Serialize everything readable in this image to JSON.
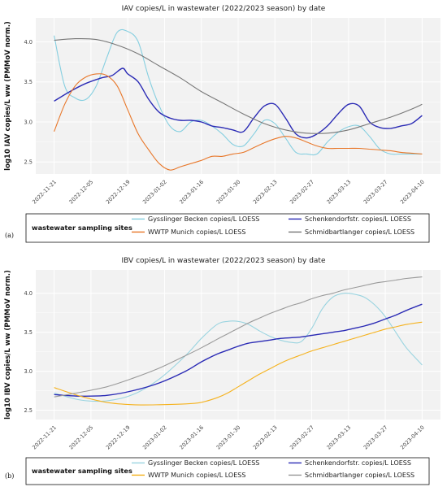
{
  "chart_data": [
    {
      "type": "line",
      "panel_label": "(a)",
      "title": "IAV copies/L in wastewater (2022/2023 season) by date",
      "xlabel": "",
      "ylabel": "log10 IAV copies/L ww (PMMoV norm.)",
      "ylim": [
        2.35,
        4.3
      ],
      "yticks": [
        2.5,
        3.0,
        3.5,
        4.0
      ],
      "ytick_labels": [
        "2.5",
        "3.0",
        "3.5",
        "4.0"
      ],
      "xlim": [
        -7,
        147
      ],
      "x_tick_labels": [
        "2022-11-21",
        "2022-12-05",
        "2022-12-19",
        "2023-01-02",
        "2023-01-16",
        "2023-01-30",
        "2023-02-13",
        "2023-02-27",
        "2023-03-13",
        "2023-03-27",
        "2023-04-10"
      ],
      "grid": true,
      "legend": {
        "title": "wastewater sampling sites",
        "placement": "bottom",
        "entries": [
          {
            "name": "Gysslinger Becken copies/L LOESS",
            "color": "#86cfe0"
          },
          {
            "name": "Schenkendorfstr. copies/L LOESS",
            "color": "#2b2bb5"
          },
          {
            "name": "WWTP Munich copies/L LOESS",
            "color": "#e8772a"
          },
          {
            "name": "Schmidbartlanger copies/L LOESS",
            "color": "#777777"
          }
        ]
      },
      "series": [
        {
          "name": "Gysslinger Becken copies/L LOESS",
          "color": "#86cfe0",
          "x": [
            0,
            4,
            8,
            12,
            16,
            20,
            24,
            28,
            32,
            36,
            40,
            44,
            48,
            52,
            56,
            60,
            64,
            68,
            72,
            76,
            80,
            84,
            88,
            92,
            96,
            100,
            104,
            108,
            112,
            116,
            120,
            124,
            128,
            132,
            136,
            140
          ],
          "y": [
            4.08,
            3.45,
            3.3,
            3.28,
            3.45,
            3.8,
            4.12,
            4.13,
            4.0,
            3.55,
            3.2,
            2.95,
            2.88,
            3.0,
            3.02,
            2.95,
            2.85,
            2.72,
            2.7,
            2.85,
            3.02,
            2.98,
            2.8,
            2.62,
            2.6,
            2.6,
            2.75,
            2.87,
            2.94,
            2.95,
            2.82,
            2.66,
            2.6,
            2.6,
            2.6,
            2.6
          ]
        },
        {
          "name": "Schenkendorfstr. copies/L LOESS",
          "color": "#2b2bb5",
          "x": [
            0,
            6,
            12,
            18,
            22,
            26,
            28,
            32,
            36,
            40,
            44,
            48,
            52,
            56,
            60,
            64,
            68,
            72,
            76,
            80,
            84,
            88,
            92,
            96,
            100,
            104,
            108,
            112,
            116,
            120,
            124,
            128,
            132,
            136,
            140
          ],
          "y": [
            3.26,
            3.38,
            3.48,
            3.55,
            3.58,
            3.67,
            3.6,
            3.5,
            3.28,
            3.12,
            3.05,
            3.02,
            3.02,
            3.0,
            2.95,
            2.93,
            2.9,
            2.88,
            3.05,
            3.2,
            3.22,
            3.05,
            2.85,
            2.8,
            2.85,
            2.95,
            3.1,
            3.22,
            3.2,
            3.0,
            2.93,
            2.92,
            2.95,
            2.98,
            3.08
          ]
        },
        {
          "name": "WWTP Munich copies/L LOESS",
          "color": "#e8772a",
          "x": [
            0,
            4,
            8,
            12,
            16,
            20,
            24,
            28,
            32,
            36,
            40,
            44,
            48,
            52,
            56,
            60,
            64,
            68,
            72,
            76,
            80,
            84,
            88,
            92,
            96,
            100,
            104,
            108,
            112,
            116,
            120,
            124,
            128,
            132,
            136,
            140
          ],
          "y": [
            2.88,
            3.22,
            3.45,
            3.56,
            3.6,
            3.58,
            3.45,
            3.15,
            2.85,
            2.65,
            2.48,
            2.4,
            2.44,
            2.48,
            2.52,
            2.57,
            2.57,
            2.6,
            2.62,
            2.68,
            2.74,
            2.79,
            2.82,
            2.8,
            2.75,
            2.7,
            2.67,
            2.67,
            2.67,
            2.67,
            2.66,
            2.65,
            2.64,
            2.62,
            2.61,
            2.6
          ]
        },
        {
          "name": "Schmidbartlanger copies/L LOESS",
          "color": "#777777",
          "x": [
            0,
            8,
            16,
            24,
            32,
            40,
            48,
            56,
            64,
            72,
            80,
            88,
            96,
            104,
            112,
            120,
            128,
            136,
            140
          ],
          "y": [
            4.02,
            4.04,
            4.03,
            3.96,
            3.85,
            3.7,
            3.55,
            3.38,
            3.24,
            3.1,
            2.98,
            2.9,
            2.86,
            2.86,
            2.9,
            2.98,
            3.06,
            3.16,
            3.22
          ]
        }
      ]
    },
    {
      "type": "line",
      "panel_label": "(b)",
      "title": "IBV copies/L in wastewater (2022/2023 season) by date",
      "xlabel": "",
      "ylabel": "log10 IBV copies/L ww (PMMoV norm.)",
      "ylim": [
        2.38,
        4.3
      ],
      "yticks": [
        2.5,
        3.0,
        3.5,
        4.0
      ],
      "ytick_labels": [
        "2.5",
        "3.0",
        "3.5",
        "4.0"
      ],
      "xlim": [
        -7,
        147
      ],
      "x_tick_labels": [
        "2022-11-21",
        "2022-12-05",
        "2022-12-19",
        "2023-01-02",
        "2023-01-16",
        "2023-01-30",
        "2023-02-13",
        "2023-02-27",
        "2023-03-13",
        "2023-03-27",
        "2023-04-10"
      ],
      "grid": true,
      "legend": {
        "title": "wastewater sampling sites",
        "placement": "bottom",
        "entries": [
          {
            "name": "Gysslinger Becken copies/L LOESS",
            "color": "#9ad4e0"
          },
          {
            "name": "Schenkendorfstr. copies/L LOESS",
            "color": "#2b2bb5"
          },
          {
            "name": "WWTP Munich copies/L LOESS",
            "color": "#f5b21e"
          },
          {
            "name": "Schmidbartlanger copies/L LOESS",
            "color": "#9a9a9a"
          }
        ]
      },
      "series": [
        {
          "name": "Gysslinger Becken copies/L LOESS",
          "color": "#9ad4e0",
          "x": [
            0,
            10,
            20,
            30,
            40,
            50,
            56,
            62,
            66,
            70,
            74,
            78,
            82,
            86,
            90,
            94,
            98,
            102,
            106,
            110,
            114,
            118,
            122,
            126,
            130,
            134,
            140
          ],
          "y": [
            2.72,
            2.63,
            2.62,
            2.7,
            2.9,
            3.2,
            3.42,
            3.6,
            3.64,
            3.64,
            3.6,
            3.52,
            3.45,
            3.4,
            3.37,
            3.38,
            3.55,
            3.8,
            3.95,
            4.0,
            3.99,
            3.95,
            3.85,
            3.7,
            3.5,
            3.3,
            3.08
          ]
        },
        {
          "name": "Schenkendorfstr. copies/L LOESS",
          "color": "#2b2bb5",
          "x": [
            0,
            10,
            20,
            30,
            40,
            50,
            56,
            62,
            66,
            70,
            74,
            78,
            82,
            86,
            90,
            94,
            98,
            102,
            106,
            110,
            114,
            118,
            122,
            126,
            130,
            134,
            140
          ],
          "y": [
            2.7,
            2.68,
            2.69,
            2.75,
            2.85,
            3.0,
            3.12,
            3.22,
            3.27,
            3.32,
            3.36,
            3.38,
            3.4,
            3.42,
            3.43,
            3.44,
            3.46,
            3.48,
            3.5,
            3.52,
            3.55,
            3.58,
            3.62,
            3.67,
            3.72,
            3.78,
            3.86
          ]
        },
        {
          "name": "WWTP Munich copies/L LOESS",
          "color": "#f5b21e",
          "x": [
            0,
            10,
            20,
            30,
            40,
            50,
            56,
            62,
            66,
            70,
            74,
            78,
            82,
            86,
            90,
            94,
            98,
            102,
            106,
            110,
            114,
            118,
            122,
            126,
            130,
            134,
            140
          ],
          "y": [
            2.79,
            2.68,
            2.6,
            2.57,
            2.57,
            2.58,
            2.6,
            2.66,
            2.72,
            2.8,
            2.88,
            2.96,
            3.03,
            3.1,
            3.16,
            3.21,
            3.26,
            3.3,
            3.34,
            3.38,
            3.42,
            3.46,
            3.5,
            3.54,
            3.57,
            3.6,
            3.63
          ]
        },
        {
          "name": "Schmidbartlanger copies/L LOESS",
          "color": "#9a9a9a",
          "x": [
            0,
            10,
            20,
            30,
            40,
            50,
            56,
            62,
            66,
            70,
            74,
            78,
            82,
            86,
            90,
            94,
            98,
            102,
            106,
            110,
            114,
            118,
            122,
            126,
            130,
            134,
            140
          ],
          "y": [
            2.67,
            2.73,
            2.8,
            2.91,
            3.04,
            3.2,
            3.3,
            3.41,
            3.48,
            3.55,
            3.62,
            3.68,
            3.74,
            3.79,
            3.84,
            3.88,
            3.93,
            3.97,
            4.0,
            4.04,
            4.07,
            4.1,
            4.13,
            4.15,
            4.17,
            4.19,
            4.21
          ]
        }
      ]
    }
  ]
}
